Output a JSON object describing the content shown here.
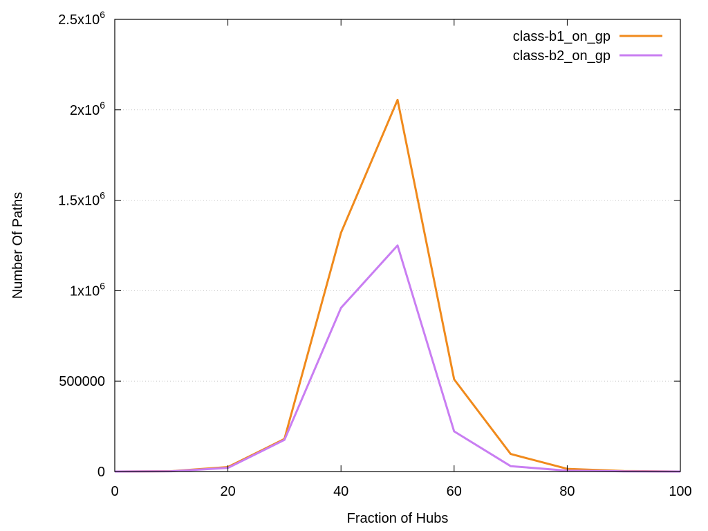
{
  "chart_data": {
    "type": "line",
    "title": "",
    "xlabel": "Fraction of Hubs",
    "ylabel": "Number Of Paths",
    "xlim": [
      0,
      100
    ],
    "ylim": [
      0,
      2500000
    ],
    "x_ticks": [
      0,
      20,
      40,
      60,
      80,
      100
    ],
    "y_ticks": [
      {
        "value": 0,
        "mantissa": "0",
        "exp": ""
      },
      {
        "value": 500000,
        "mantissa": "500000",
        "exp": ""
      },
      {
        "value": 1000000,
        "mantissa": "1x10",
        "exp": "6"
      },
      {
        "value": 1500000,
        "mantissa": "1.5x10",
        "exp": "6"
      },
      {
        "value": 2000000,
        "mantissa": "2x10",
        "exp": "6"
      },
      {
        "value": 2500000,
        "mantissa": "2.5x10",
        "exp": "6"
      }
    ],
    "grid": "horizontal-dotted",
    "legend_position": "top-right",
    "x": [
      0,
      10,
      20,
      30,
      40,
      50,
      60,
      70,
      80,
      90,
      100
    ],
    "series": [
      {
        "name": "class-b1_on_gp",
        "color": "#f08a1c",
        "values": [
          0,
          2000,
          25000,
          180000,
          1320000,
          2055000,
          510000,
          97000,
          15000,
          3000,
          0
        ]
      },
      {
        "name": "class-b2_on_gp",
        "color": "#c97ef2",
        "values": [
          0,
          1500,
          20000,
          175000,
          905000,
          1250000,
          222000,
          30000,
          5000,
          1000,
          0
        ]
      }
    ]
  }
}
